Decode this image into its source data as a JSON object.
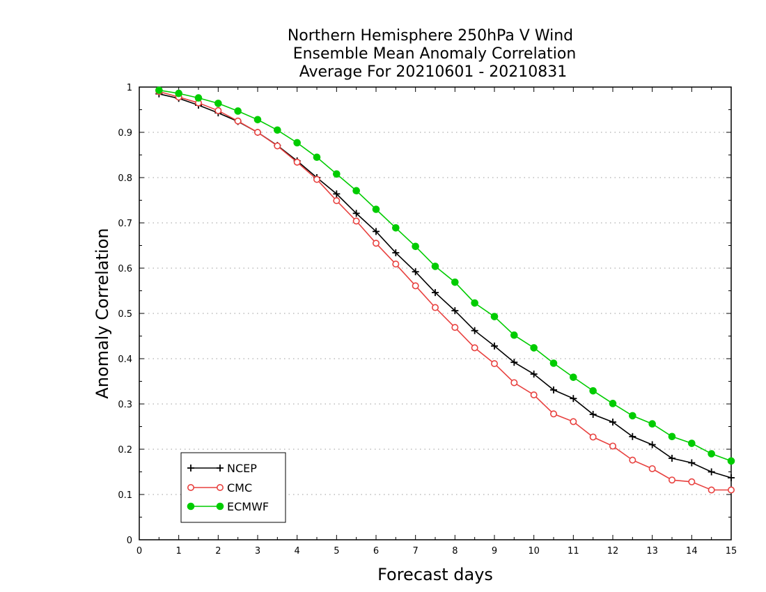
{
  "chart_data": {
    "type": "line",
    "title_lines": [
      "Northern Hemisphere 250hPa V Wind",
      "Ensemble Mean Anomaly Correlation",
      "Average For 20210601 - 20210831"
    ],
    "xlabel": "Forecast days",
    "ylabel": "Anomaly Correlation",
    "xlim": [
      0,
      15
    ],
    "ylim": [
      0,
      1
    ],
    "x_ticks": [
      "0",
      "1",
      "2",
      "3",
      "4",
      "5",
      "6",
      "7",
      "8",
      "9",
      "10",
      "11",
      "12",
      "13",
      "14",
      "15"
    ],
    "y_ticks": [
      "0",
      "0.1",
      "0.2",
      "0.3",
      "0.4",
      "0.5",
      "0.6",
      "0.7",
      "0.8",
      "0.9",
      "1"
    ],
    "grid": "horizontal-dotted",
    "legend_position": "bottom-left",
    "x": [
      0.5,
      1,
      1.5,
      2,
      2.5,
      3,
      3.5,
      4,
      4.5,
      5,
      5.5,
      6,
      6.5,
      7,
      7.5,
      8,
      8.5,
      9,
      9.5,
      10,
      10.5,
      11,
      11.5,
      12,
      12.5,
      13,
      13.5,
      14,
      14.5,
      15
    ],
    "series": [
      {
        "name": "NCEP",
        "color": "#000000",
        "marker": "plus",
        "values": [
          0.985,
          0.975,
          0.96,
          0.943,
          0.924,
          0.9,
          0.871,
          0.837,
          0.8,
          0.764,
          0.721,
          0.681,
          0.634,
          0.592,
          0.546,
          0.506,
          0.462,
          0.428,
          0.392,
          0.366,
          0.331,
          0.312,
          0.277,
          0.26,
          0.228,
          0.21,
          0.18,
          0.17,
          0.15,
          0.137
        ]
      },
      {
        "name": "CMC",
        "color": "#e8413f",
        "marker": "open-circle",
        "values": [
          0.99,
          0.978,
          0.965,
          0.948,
          0.925,
          0.9,
          0.87,
          0.834,
          0.796,
          0.749,
          0.704,
          0.655,
          0.609,
          0.561,
          0.513,
          0.469,
          0.424,
          0.389,
          0.347,
          0.32,
          0.278,
          0.261,
          0.227,
          0.207,
          0.176,
          0.157,
          0.132,
          0.128,
          0.11,
          0.11
        ]
      },
      {
        "name": "ECMWF",
        "color": "#00cc00",
        "marker": "filled-circle",
        "values": [
          0.993,
          0.986,
          0.976,
          0.964,
          0.947,
          0.928,
          0.905,
          0.877,
          0.845,
          0.808,
          0.771,
          0.73,
          0.689,
          0.648,
          0.604,
          0.569,
          0.523,
          0.493,
          0.452,
          0.424,
          0.39,
          0.359,
          0.329,
          0.301,
          0.274,
          0.256,
          0.228,
          0.213,
          0.19,
          0.174
        ]
      }
    ]
  }
}
